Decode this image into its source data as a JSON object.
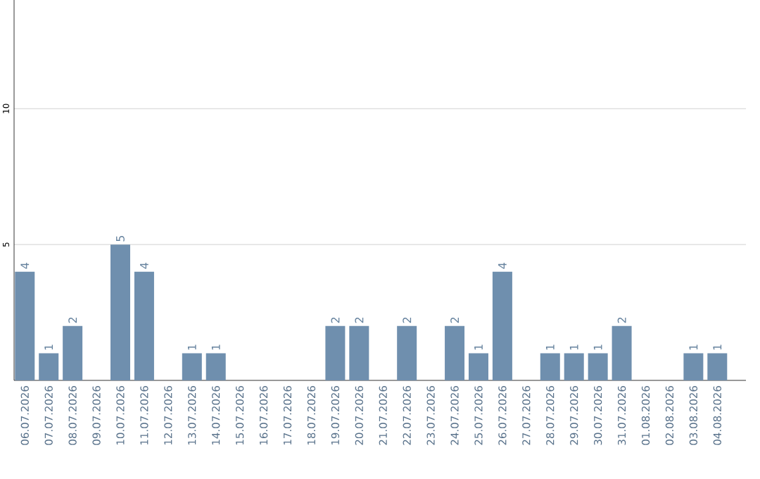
{
  "chart_data": {
    "type": "bar",
    "categories": [
      "06.07.2026",
      "07.07.2026",
      "08.07.2026",
      "09.07.2026",
      "10.07.2026",
      "11.07.2026",
      "12.07.2026",
      "13.07.2026",
      "14.07.2026",
      "15.07.2026",
      "16.07.2026",
      "17.07.2026",
      "18.07.2026",
      "19.07.2026",
      "20.07.2026",
      "21.07.2026",
      "22.07.2026",
      "23.07.2026",
      "24.07.2026",
      "25.07.2026",
      "26.07.2026",
      "27.07.2026",
      "28.07.2026",
      "29.07.2026",
      "30.07.2026",
      "31.07.2026",
      "01.08.2026",
      "02.08.2026",
      "03.08.2026",
      "04.08.2026"
    ],
    "values": [
      4,
      1,
      2,
      0,
      5,
      4,
      0,
      1,
      1,
      0,
      0,
      0,
      0,
      2,
      2,
      0,
      2,
      0,
      2,
      1,
      4,
      0,
      1,
      1,
      1,
      2,
      0,
      0,
      1,
      1
    ],
    "value_labels": [
      "4",
      "1",
      "2",
      null,
      "5",
      "4",
      null,
      "1",
      "1",
      null,
      null,
      null,
      null,
      "2",
      "2",
      null,
      "2",
      null,
      "2",
      "1",
      "4",
      null,
      "1",
      "1",
      "1",
      "2",
      null,
      null,
      "1",
      "1"
    ],
    "color": "#6f8fae",
    "ylim": [
      0,
      14
    ],
    "yticks": [
      5,
      10
    ],
    "grid": "y"
  }
}
